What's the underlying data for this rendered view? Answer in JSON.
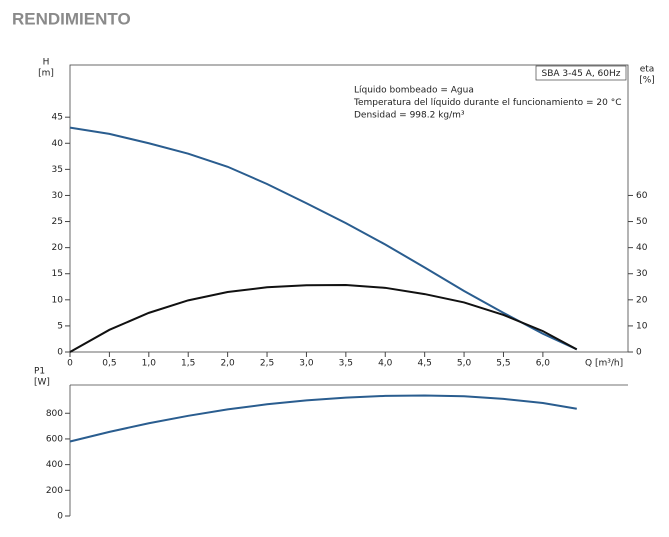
{
  "title": "RENDIMIENTO",
  "chart_data": [
    {
      "type": "line",
      "label_box": "SBA 3-45 A, 60Hz",
      "annotations": [
        "Líquido bombeado = Agua",
        "Temperatura del líquido durante el funcionamiento = 20 °C",
        "Densidad = 998.2 kg/m³"
      ],
      "ylabel": [
        "H",
        "[m]"
      ],
      "y2label": [
        "eta",
        "[%]"
      ],
      "xlabel": "Q [m³/h]",
      "x": [
        0,
        0.5,
        1,
        1.5,
        2,
        2.5,
        3,
        3.5,
        4,
        4.5,
        5,
        5.5,
        6,
        6.43
      ],
      "series": [
        {
          "name": "H",
          "color": "#2a5d8f",
          "values": [
            43,
            41.8,
            40,
            38,
            35.5,
            32.2,
            28.5,
            24.7,
            20.6,
            16.2,
            11.7,
            7.5,
            3.5,
            0.5
          ]
        },
        {
          "name": "eta",
          "color": "#111111",
          "axis": "y2",
          "values": [
            0,
            8.5,
            15,
            19.8,
            23,
            24.8,
            25.6,
            25.7,
            24.6,
            22.2,
            19,
            14.2,
            8,
            1
          ]
        }
      ],
      "xlim": [
        0,
        7.08
      ],
      "xticks": [
        0,
        {
          "value": 0.5,
          "label": "0,5"
        },
        {
          "value": 1,
          "label": "1,0"
        },
        {
          "value": 1.5,
          "label": "1,5"
        },
        {
          "value": 2,
          "label": "2,0"
        },
        {
          "value": 2.5,
          "label": "2,5"
        },
        {
          "value": 3,
          "label": "3,0"
        },
        {
          "value": 3.5,
          "label": "3,5"
        },
        {
          "value": 4,
          "label": "4,0"
        },
        {
          "value": 4.5,
          "label": "4,5"
        },
        {
          "value": 5,
          "label": "5,0"
        },
        {
          "value": 5.5,
          "label": "5,5"
        },
        {
          "value": 6,
          "label": "6,0"
        }
      ],
      "ylim": [
        0,
        55
      ],
      "yticks": [
        0,
        5,
        10,
        15,
        20,
        25,
        30,
        35,
        40,
        45
      ],
      "y2lim": [
        0,
        110
      ],
      "y2ticks": [
        0,
        10,
        20,
        30,
        40,
        50,
        60
      ]
    },
    {
      "type": "line",
      "ylabel": [
        "P1",
        "[W]"
      ],
      "x": [
        0,
        0.5,
        1,
        1.5,
        2,
        2.5,
        3,
        3.5,
        4,
        4.5,
        5,
        5.5,
        6,
        6.43
      ],
      "series": [
        {
          "name": "P1",
          "color": "#2a5d8f",
          "values": [
            580,
            655,
            722,
            780,
            830,
            870,
            900,
            922,
            935,
            938,
            932,
            912,
            880,
            835
          ]
        }
      ],
      "xlim": [
        0,
        7.08
      ],
      "ylim": [
        0,
        1020
      ],
      "yticks": [
        0,
        200,
        400,
        600,
        800
      ]
    }
  ]
}
